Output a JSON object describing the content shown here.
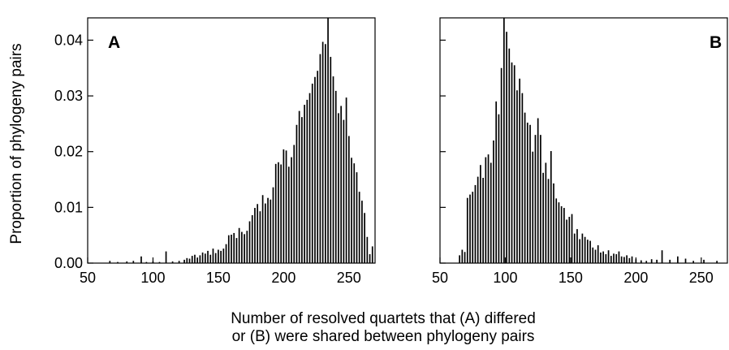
{
  "ylabel": "Proportion of phylogeny pairs",
  "xlabel_line1": "Number of resolved quartets that (A) differed",
  "xlabel_line2": "or (B) were shared between phylogeny pairs",
  "chart_data": [
    {
      "type": "bar",
      "panel_label": "A",
      "xlim": [
        50,
        270
      ],
      "ylim": [
        0,
        0.044
      ],
      "xticks": [
        50,
        100,
        150,
        200,
        250
      ],
      "yticks": [
        0.0,
        0.01,
        0.02,
        0.03,
        0.04
      ],
      "ytick_labels": [
        "0.00",
        "0.01",
        "0.02",
        "0.03",
        "0.04"
      ],
      "y_peak": 0.044,
      "grid": false,
      "series": [
        {
          "x": [
            67,
            73,
            80,
            85,
            91,
            95,
            100,
            105,
            110,
            115,
            120,
            124,
            126,
            128,
            130,
            132,
            134,
            136,
            138,
            140,
            142,
            144,
            146,
            148,
            150,
            152,
            154,
            156,
            158,
            160,
            162,
            164,
            166,
            168,
            170,
            172,
            174,
            176,
            178,
            180,
            182,
            184,
            186,
            188,
            190,
            192,
            194,
            196,
            198,
            200,
            202,
            204,
            206,
            208,
            210,
            212,
            214,
            216,
            218,
            220,
            222,
            224,
            226,
            228,
            230,
            232,
            234,
            236,
            238,
            240,
            242,
            244,
            246,
            248,
            250,
            252,
            254,
            256,
            258,
            260,
            262,
            264,
            266,
            268
          ],
          "values": [
            0.0004,
            0.0002,
            0.0003,
            0.0004,
            0.0012,
            0.0002,
            0.0003,
            0.0002,
            0.0021,
            0.0003,
            0.0004,
            0.0006,
            0.0009,
            0.0008,
            0.0013,
            0.0015,
            0.001,
            0.0014,
            0.0019,
            0.0017,
            0.0022,
            0.0015,
            0.0026,
            0.0018,
            0.0024,
            0.0022,
            0.0026,
            0.0034,
            0.005,
            0.0051,
            0.0054,
            0.0045,
            0.0063,
            0.0056,
            0.0052,
            0.0058,
            0.0075,
            0.0086,
            0.0099,
            0.0106,
            0.0093,
            0.0122,
            0.0107,
            0.0117,
            0.0114,
            0.0136,
            0.0178,
            0.0181,
            0.0177,
            0.0204,
            0.0202,
            0.0173,
            0.019,
            0.0212,
            0.0248,
            0.0273,
            0.0262,
            0.0284,
            0.0293,
            0.0305,
            0.0322,
            0.0334,
            0.0345,
            0.0375,
            0.0397,
            0.0393,
            0.044,
            0.037,
            0.0335,
            0.0309,
            0.0269,
            0.0282,
            0.0257,
            0.0297,
            0.0228,
            0.0189,
            0.0179,
            0.0163,
            0.0128,
            0.0112,
            0.009,
            0.0047,
            0.0016,
            0.003
          ]
        }
      ]
    },
    {
      "type": "bar",
      "panel_label": "B",
      "xlim": [
        50,
        270
      ],
      "ylim": [
        0,
        0.044
      ],
      "xticks": [
        50,
        100,
        150,
        200,
        250
      ],
      "yticks": [
        0.0,
        0.01,
        0.02,
        0.03,
        0.04
      ],
      "y_peak": 0.044,
      "grid": false,
      "series": [
        {
          "x": [
            65,
            67,
            69,
            71,
            73,
            75,
            77,
            79,
            81,
            83,
            85,
            87,
            89,
            91,
            93,
            95,
            97,
            99,
            101,
            103,
            105,
            107,
            109,
            111,
            113,
            115,
            117,
            119,
            121,
            123,
            125,
            127,
            129,
            131,
            133,
            135,
            137,
            139,
            141,
            143,
            145,
            147,
            149,
            151,
            153,
            155,
            157,
            159,
            161,
            163,
            165,
            167,
            169,
            171,
            173,
            175,
            177,
            179,
            181,
            183,
            185,
            187,
            189,
            191,
            193,
            195,
            197,
            200,
            204,
            208,
            212,
            216,
            220,
            226,
            232,
            238,
            244,
            252,
            262
          ],
          "values": [
            0.0014,
            0.0024,
            0.002,
            0.0117,
            0.0123,
            0.0128,
            0.014,
            0.0155,
            0.0176,
            0.0153,
            0.019,
            0.0195,
            0.018,
            0.022,
            0.029,
            0.0267,
            0.035,
            0.044,
            0.0415,
            0.0385,
            0.036,
            0.0355,
            0.031,
            0.0331,
            0.0305,
            0.027,
            0.0252,
            0.0248,
            0.02,
            0.023,
            0.026,
            0.023,
            0.0162,
            0.018,
            0.0151,
            0.0201,
            0.0143,
            0.0116,
            0.0109,
            0.0102,
            0.0099,
            0.0078,
            0.0083,
            0.0088,
            0.0053,
            0.0061,
            0.0043,
            0.0053,
            0.0047,
            0.0042,
            0.004,
            0.0028,
            0.0024,
            0.0032,
            0.0019,
            0.0021,
            0.0016,
            0.0023,
            0.0013,
            0.0017,
            0.0016,
            0.0021,
            0.0012,
            0.0011,
            0.0014,
            0.0009,
            0.0012,
            0.0007,
            0.0005,
            0.0004,
            0.0007,
            0.0006,
            0.0023,
            0.0006,
            0.0012,
            0.0008,
            0.0004,
            0.0006,
            0.0004
          ]
        }
      ]
    }
  ]
}
